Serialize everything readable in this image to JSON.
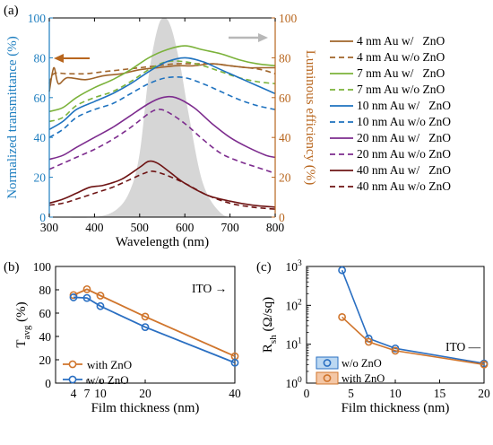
{
  "colors": {
    "blue_axis": "#1f7fc0",
    "orange_axis": "#b8661e",
    "gray_curve": "#d6d6d6",
    "gray_arrow": "#b8b8b8",
    "c4": "#a0642a",
    "c7": "#7bb23a",
    "c10": "#1e72bf",
    "c20": "#7d2c8e",
    "c40": "#6e1414",
    "orange_pt": "#d0752c",
    "blue_pt": "#2a6fc2"
  },
  "chart_data": [
    {
      "type": "line",
      "panel_label": "(a)",
      "xlabel": "Wavelength (nm)",
      "ylabel": "Normalized transmittance (%)",
      "ylabel_right": "Luminous efficiency (%)",
      "xlim": [
        300,
        800
      ],
      "ylim": [
        0,
        100
      ],
      "ylim_right": [
        0,
        100
      ],
      "xticks": [
        300,
        400,
        500,
        600,
        700,
        800
      ],
      "yticks": [
        0,
        20,
        40,
        60,
        80,
        100
      ],
      "yticks_right": [
        0,
        20,
        40,
        60,
        80,
        100
      ],
      "luminous_efficiency": {
        "x": [
          300,
          400,
          450,
          480,
          500,
          520,
          540,
          555,
          570,
          590,
          610,
          640,
          680,
          720,
          760,
          800
        ],
        "y": [
          0,
          0,
          4,
          14,
          32,
          71,
          95,
          100,
          95,
          76,
          50,
          17,
          2,
          0,
          0,
          0
        ]
      },
      "series": [
        {
          "name": "4 nm Au w/   ZnO",
          "key": "c4",
          "dash": false,
          "x": [
            300,
            310,
            320,
            340,
            380,
            420,
            460,
            500,
            540,
            580,
            620,
            660,
            700,
            740,
            770,
            800
          ],
          "y": [
            63,
            75,
            67,
            70,
            69,
            71,
            72,
            74,
            75,
            76,
            76,
            77,
            76,
            75,
            75,
            75
          ]
        },
        {
          "name": "4 nm Au w/o ZnO",
          "key": "c4",
          "dash": true,
          "x": [
            300,
            310,
            340,
            380,
            420,
            460,
            500,
            540,
            580,
            620,
            660,
            700,
            740,
            770,
            800
          ],
          "y": [
            67,
            72,
            72,
            72,
            73,
            74,
            75,
            76,
            77,
            77,
            77,
            76,
            75,
            74,
            72
          ]
        },
        {
          "name": "7 nm Au w/   ZnO",
          "key": "c7",
          "dash": false,
          "x": [
            300,
            330,
            360,
            400,
            440,
            480,
            520,
            560,
            600,
            640,
            680,
            720,
            760,
            800
          ],
          "y": [
            53,
            55,
            60,
            65,
            69,
            74,
            80,
            84,
            86,
            84,
            82,
            79,
            77,
            76
          ]
        },
        {
          "name": "7 nm Au w/o ZnO",
          "key": "c7",
          "dash": true,
          "x": [
            300,
            330,
            360,
            400,
            440,
            480,
            520,
            560,
            600,
            640,
            680,
            720,
            760,
            800
          ],
          "y": [
            48,
            50,
            56,
            60,
            63,
            68,
            74,
            78,
            78,
            76,
            73,
            70,
            68,
            67
          ]
        },
        {
          "name": "10 nm Au w/   ZnO",
          "key": "c10",
          "dash": false,
          "x": [
            300,
            330,
            360,
            400,
            440,
            480,
            520,
            560,
            600,
            640,
            680,
            720,
            760,
            800
          ],
          "y": [
            44,
            48,
            54,
            58,
            62,
            67,
            73,
            78,
            80,
            78,
            74,
            70,
            66,
            62
          ]
        },
        {
          "name": "10 nm Au w/o ZnO",
          "key": "c10",
          "dash": true,
          "x": [
            300,
            330,
            360,
            400,
            440,
            480,
            520,
            560,
            600,
            640,
            680,
            720,
            760,
            800
          ],
          "y": [
            40,
            44,
            50,
            54,
            57,
            62,
            67,
            70,
            70,
            67,
            63,
            59,
            56,
            54
          ]
        },
        {
          "name": "20 nm Au w/   ZnO",
          "key": "c20",
          "dash": false,
          "x": [
            300,
            330,
            360,
            400,
            440,
            480,
            520,
            550,
            580,
            620,
            660,
            700,
            740,
            780,
            800
          ],
          "y": [
            29,
            31,
            35,
            40,
            45,
            51,
            57,
            60,
            60,
            55,
            47,
            40,
            35,
            31,
            30
          ]
        },
        {
          "name": "20 nm Au w/o ZnO",
          "key": "c20",
          "dash": true,
          "x": [
            300,
            330,
            360,
            400,
            440,
            480,
            520,
            540,
            560,
            600,
            640,
            680,
            720,
            760,
            800
          ],
          "y": [
            24,
            27,
            30,
            34,
            39,
            45,
            52,
            54,
            53,
            47,
            39,
            32,
            28,
            25,
            22
          ]
        },
        {
          "name": "40 nm Au w/   ZnO",
          "key": "c40",
          "dash": false,
          "x": [
            300,
            330,
            360,
            390,
            420,
            460,
            500,
            520,
            540,
            570,
            600,
            650,
            700,
            750,
            800
          ],
          "y": [
            7,
            9,
            12,
            15,
            16,
            19,
            25,
            28,
            27,
            22,
            17,
            11,
            8,
            6,
            5
          ]
        },
        {
          "name": "40 nm Au w/o ZnO",
          "key": "c40",
          "dash": true,
          "x": [
            300,
            330,
            360,
            400,
            440,
            480,
            510,
            530,
            560,
            600,
            650,
            700,
            750,
            800
          ],
          "y": [
            6,
            7,
            9,
            12,
            15,
            19,
            22,
            23,
            21,
            17,
            11,
            7,
            5,
            4
          ]
        }
      ]
    },
    {
      "type": "line",
      "panel_label": "(b)",
      "xlabel": "Film thickness (nm)",
      "ylabel_main": "T",
      "ylabel_sub": "avg",
      "ylabel_tail": " (%)",
      "annotation": "ITO →",
      "xlim": [
        0,
        40
      ],
      "ylim": [
        0,
        100
      ],
      "xticks": [
        4,
        7,
        10,
        20,
        40
      ],
      "yticks": [
        0,
        20,
        40,
        60,
        80,
        100
      ],
      "x": [
        4,
        7,
        10,
        20,
        40
      ],
      "series": [
        {
          "name": "with ZnO",
          "key": "orange_pt",
          "values": [
            75.5,
            80.5,
            75,
            57,
            23
          ]
        },
        {
          "name": "w/o ZnO",
          "key": "blue_pt",
          "values": [
            73.5,
            73,
            66,
            48,
            17.5
          ]
        }
      ]
    },
    {
      "type": "line",
      "panel_label": "(c)",
      "xlabel": "Film thickness (nm)",
      "ylabel_main": "R",
      "ylabel_sub": "sh",
      "ylabel_tail": " (Ω/sq)",
      "annotation": "ITO —",
      "xscale": "linear",
      "yscale": "log",
      "xlim": [
        0,
        20
      ],
      "ylim": [
        1,
        1000
      ],
      "xticks": [
        0,
        5,
        10,
        15,
        20
      ],
      "yticks": [
        1,
        10,
        100,
        1000
      ],
      "ytick_labels": [
        [
          "10",
          "0"
        ],
        [
          "10",
          "1"
        ],
        [
          "10",
          "2"
        ],
        [
          "10",
          "3"
        ]
      ],
      "x": [
        4,
        7,
        10,
        20
      ],
      "series": [
        {
          "name": "w/o ZnO",
          "key": "blue_pt",
          "values": [
            800,
            14,
            7.8,
            3.2
          ]
        },
        {
          "name": "with ZnO",
          "key": "orange_pt",
          "values": [
            50,
            11.5,
            6.8,
            3.0
          ]
        }
      ]
    }
  ]
}
